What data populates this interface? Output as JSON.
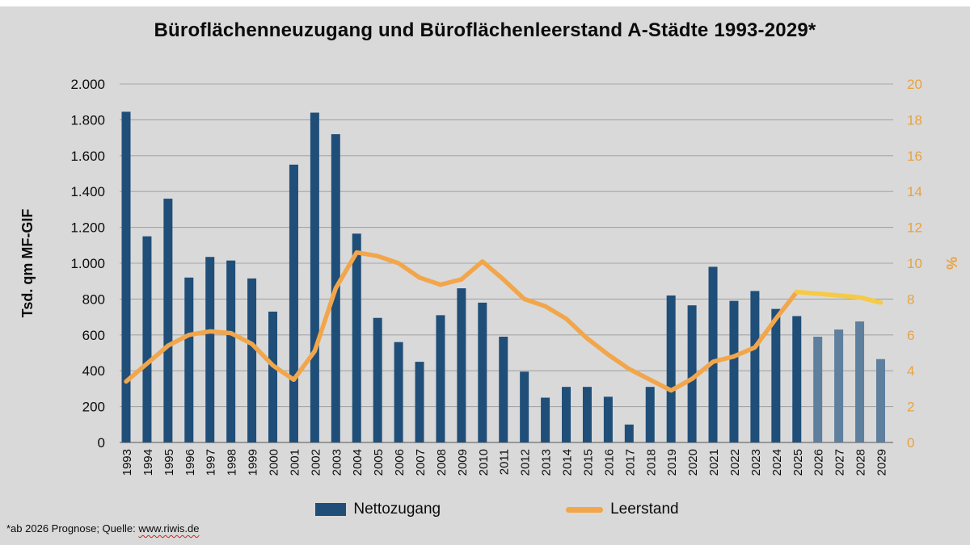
{
  "title": "Büroflächenneuzugang und Büroflächenleerstand A-Städte 1993-2029*",
  "footnote": {
    "text": "*ab 2026 Prognose; Quelle: ",
    "link_text": "www.riwis.de"
  },
  "colors": {
    "background": "#d9d9d9",
    "bar": "#1f4e79",
    "bar_forecast": "#5e7f9e",
    "line": "#f2a64b",
    "line_forecast": "#f7ca45",
    "grid": "#a6a6a6",
    "axis_baseline": "#808080",
    "right_axis_text": "#e9a23f",
    "title_text": "#0b0b0b"
  },
  "chart_data": {
    "type": "bar+line combo",
    "title": "Büroflächenneuzugang und Büroflächenleerstand A-Städte 1993-2029*",
    "x": [
      1993,
      1994,
      1995,
      1996,
      1997,
      1998,
      1999,
      2000,
      2001,
      2002,
      2003,
      2004,
      2005,
      2006,
      2007,
      2008,
      2009,
      2010,
      2011,
      2012,
      2013,
      2014,
      2015,
      2016,
      2017,
      2018,
      2019,
      2020,
      2021,
      2022,
      2023,
      2024,
      2025,
      2026,
      2027,
      2028,
      2029
    ],
    "left_axis": {
      "title": "Tsd. qm MF-GIF",
      "min": 0,
      "max": 2000,
      "ticks": [
        "2.000",
        "1.800",
        "1.600",
        "1.400",
        "1.200",
        "1.000",
        "800",
        "600",
        "400",
        "200",
        "0"
      ]
    },
    "right_axis": {
      "title": "%",
      "min": 0,
      "max": 20,
      "ticks": [
        "20",
        "18",
        "16",
        "14",
        "12",
        "10",
        "8",
        "6",
        "4",
        "2",
        "0"
      ]
    },
    "series": [
      {
        "name": "Nettozugang",
        "type": "bar",
        "axis": "left",
        "unit": "Tsd. qm",
        "forecast_from_year": 2026,
        "values": [
          1845,
          1150,
          1360,
          920,
          1035,
          1015,
          915,
          730,
          1550,
          1840,
          1720,
          1165,
          695,
          560,
          450,
          710,
          860,
          780,
          590,
          395,
          250,
          310,
          310,
          255,
          100,
          310,
          820,
          765,
          980,
          790,
          845,
          745,
          705,
          590,
          630,
          675,
          465
        ]
      },
      {
        "name": "Leerstand",
        "type": "line",
        "axis": "right",
        "unit": "%",
        "forecast_from_year": 2025,
        "values": [
          3.4,
          4.4,
          5.4,
          6.0,
          6.2,
          6.1,
          5.5,
          4.3,
          3.5,
          5.1,
          8.6,
          10.6,
          10.4,
          10.0,
          9.2,
          8.8,
          9.1,
          10.1,
          9.1,
          8.0,
          7.6,
          6.9,
          5.8,
          4.9,
          4.1,
          3.5,
          2.9,
          3.55,
          4.5,
          4.8,
          5.3,
          6.9,
          8.4,
          8.3,
          8.2,
          8.1,
          7.8
        ]
      }
    ],
    "grid": "horizontal",
    "legend_position": "bottom",
    "note": "*ab 2026 Prognose; Quelle: www.riwis.de"
  }
}
